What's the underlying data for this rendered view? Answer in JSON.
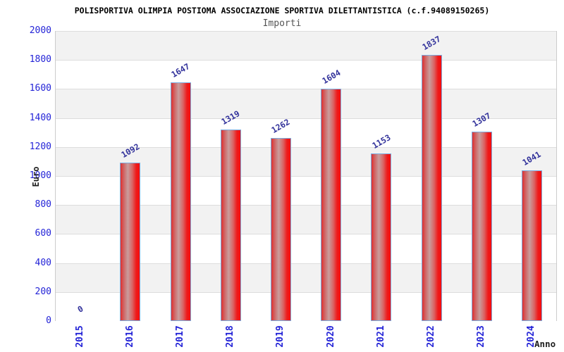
{
  "chart_data": {
    "type": "bar",
    "title": "POLISPORTIVA OLIMPIA POSTIOMA ASSOCIAZIONE SPORTIVA DILETTANTISTICA (c.f.94089150265)",
    "subtitle": "Importi",
    "xlabel": "Anno",
    "ylabel": "Euro",
    "categories": [
      "2015",
      "2016",
      "2017",
      "2018",
      "2019",
      "2020",
      "2021",
      "2022",
      "2023",
      "2024"
    ],
    "values": [
      0,
      1092,
      1647,
      1319,
      1262,
      1604,
      1153,
      1837,
      1307,
      1041
    ],
    "ylim": [
      0,
      2000
    ],
    "yticks": [
      0,
      200,
      400,
      600,
      800,
      1000,
      1200,
      1400,
      1600,
      1800,
      2000
    ],
    "legend": "none",
    "grid": "horizontal-bands-alternating"
  },
  "colors": {
    "title": "#000000",
    "subtitle": "#555555",
    "tick_label": "#2323d7",
    "value_label": "#32329b",
    "axis_title": "#1f1f1f",
    "band_gray": "#f2f2f2",
    "band_white": "#ffffff",
    "grid_line": "#dddddd",
    "plot_border": "#cccccc",
    "bar_border": "#7aabdf",
    "bar_gradient": [
      "#e12e2e",
      "#d06060",
      "#c99c9c",
      "#da6464",
      "#ee1b1b",
      "#f60c0c"
    ]
  }
}
